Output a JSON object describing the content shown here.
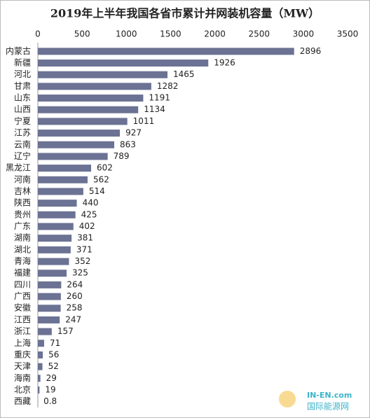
{
  "chart_data": {
    "type": "bar",
    "orientation": "horizontal",
    "title": "2019年上半年我国各省市累计并网装机容量（MW）",
    "categories": [
      "内蒙古",
      "新疆",
      "河北",
      "甘肃",
      "山东",
      "山西",
      "宁夏",
      "江苏",
      "云南",
      "辽宁",
      "黑龙江",
      "河南",
      "吉林",
      "陕西",
      "贵州",
      "广东",
      "湖南",
      "湖北",
      "青海",
      "福建",
      "四川",
      "广西",
      "安徽",
      "江西",
      "浙江",
      "上海",
      "重庆",
      "天津",
      "海南",
      "北京",
      "西藏"
    ],
    "values": [
      2896,
      1926,
      1465,
      1282,
      1191,
      1134,
      1011,
      927,
      863,
      789,
      602,
      562,
      514,
      440,
      425,
      402,
      381,
      371,
      352,
      325,
      264,
      260,
      258,
      247,
      157,
      71,
      56,
      52,
      29,
      19,
      0.8
    ],
    "color": "#6b7293",
    "xlim": [
      0,
      3500
    ],
    "xticks": [
      0,
      500,
      1000,
      1500,
      2000,
      2500,
      3000,
      3500
    ],
    "grid": false,
    "watermark": [
      "IN-EN.com",
      "国际能源网"
    ]
  }
}
